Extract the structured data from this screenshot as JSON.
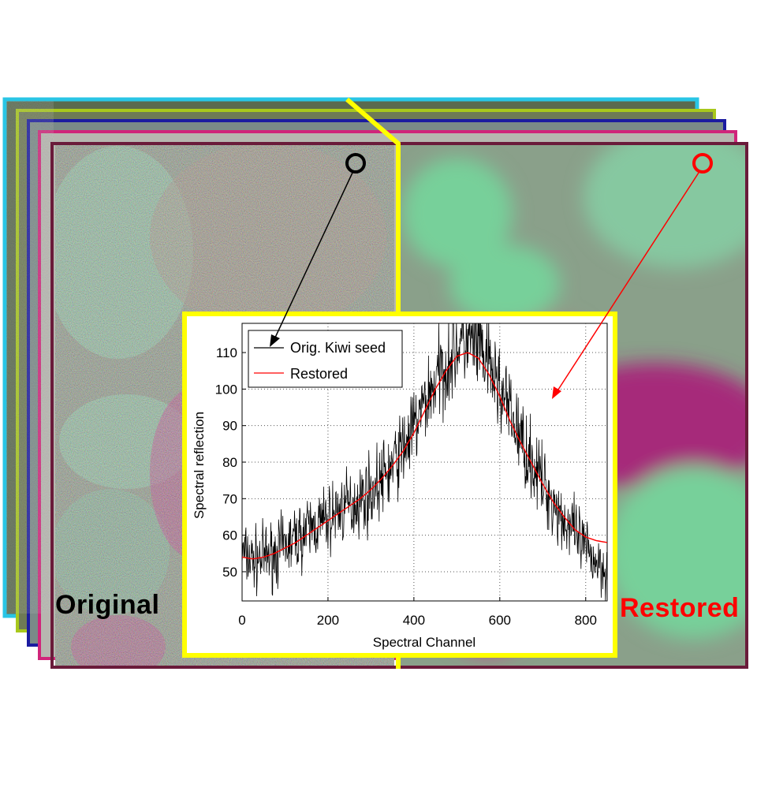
{
  "labels": {
    "original": "Original",
    "restored": "Restored"
  },
  "colors": {
    "frame_layers": [
      "#29c5e5",
      "#a8c81c",
      "#1b1ba0",
      "#d0257a",
      "#6a1b3a"
    ],
    "highlight_yellow": "#ffff00",
    "original_marker": "#000000",
    "restored_marker": "#ff0000"
  },
  "chart_data": {
    "type": "line",
    "title": "",
    "xlabel": "Spectral Channel",
    "ylabel": "Spectral reflection",
    "xlim": [
      0,
      850
    ],
    "ylim": [
      42,
      118
    ],
    "xticks": [
      0,
      200,
      400,
      600,
      800
    ],
    "yticks": [
      50,
      60,
      70,
      80,
      90,
      100,
      110
    ],
    "grid": true,
    "legend_position": "top-left",
    "series": [
      {
        "name": "Orig. Kiwi seed",
        "color": "#000000",
        "style": "noisy-line",
        "x": [
          0,
          25,
          50,
          75,
          100,
          125,
          150,
          175,
          200,
          225,
          250,
          275,
          300,
          325,
          350,
          375,
          400,
          425,
          450,
          475,
          500,
          525,
          550,
          575,
          600,
          625,
          650,
          675,
          700,
          725,
          750,
          775,
          800,
          825,
          850
        ],
        "values": [
          55,
          53,
          54,
          55,
          57,
          59,
          61,
          63,
          64,
          67,
          68,
          70,
          72,
          75,
          79,
          84,
          89,
          96,
          102,
          107,
          112,
          113,
          111,
          106,
          100,
          93,
          86,
          80,
          74,
          69,
          64,
          60,
          56,
          53,
          51
        ]
      },
      {
        "name": "Restored",
        "color": "#ff0000",
        "style": "smooth-line",
        "x": [
          0,
          25,
          50,
          75,
          100,
          125,
          150,
          175,
          200,
          225,
          250,
          275,
          300,
          325,
          350,
          375,
          400,
          425,
          450,
          475,
          500,
          525,
          550,
          575,
          600,
          625,
          650,
          675,
          700,
          725,
          750,
          775,
          800,
          825,
          850
        ],
        "values": [
          54,
          53.5,
          54,
          55,
          56.5,
          58,
          60,
          62,
          64,
          66,
          68,
          70,
          72.5,
          75.5,
          79,
          83,
          88,
          94,
          100,
          105,
          109,
          110,
          108.5,
          104,
          98,
          91,
          85,
          79.5,
          74,
          69,
          65,
          61.5,
          59.5,
          58.5,
          58
        ]
      }
    ]
  }
}
